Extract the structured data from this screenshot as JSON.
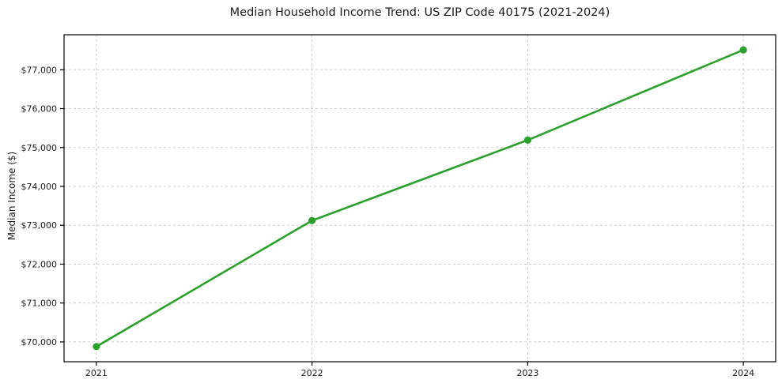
{
  "chart_data": {
    "type": "line",
    "title": "Median Household Income Trend: US ZIP Code 40175 (2021-2024)",
    "xlabel": "",
    "ylabel": "Median Income ($)",
    "x": [
      2021,
      2022,
      2023,
      2024
    ],
    "x_tick_labels": [
      "2021",
      "2022",
      "2023",
      "2024"
    ],
    "series": [
      {
        "name": "Median Household Income",
        "values": [
          69880,
          73120,
          75190,
          77510
        ]
      }
    ],
    "y_ticks": [
      70000,
      71000,
      72000,
      73000,
      74000,
      75000,
      76000,
      77000
    ],
    "y_tick_labels": [
      "$70,000",
      "$71,000",
      "$72,000",
      "$73,000",
      "$74,000",
      "$75,000",
      "$76,000",
      "$77,000"
    ],
    "xlim": [
      2020.85,
      2024.15
    ],
    "ylim": [
      69490,
      77900
    ],
    "grid": true,
    "grid_style": "dashed",
    "legend_position": "none",
    "marker": "circle",
    "colors": {
      "line": "#2ca02c",
      "marker": "#2ca02c",
      "grid": "#cccccc",
      "axis": "#000000",
      "text": "#1a1a1a",
      "background": "#ffffff"
    }
  }
}
